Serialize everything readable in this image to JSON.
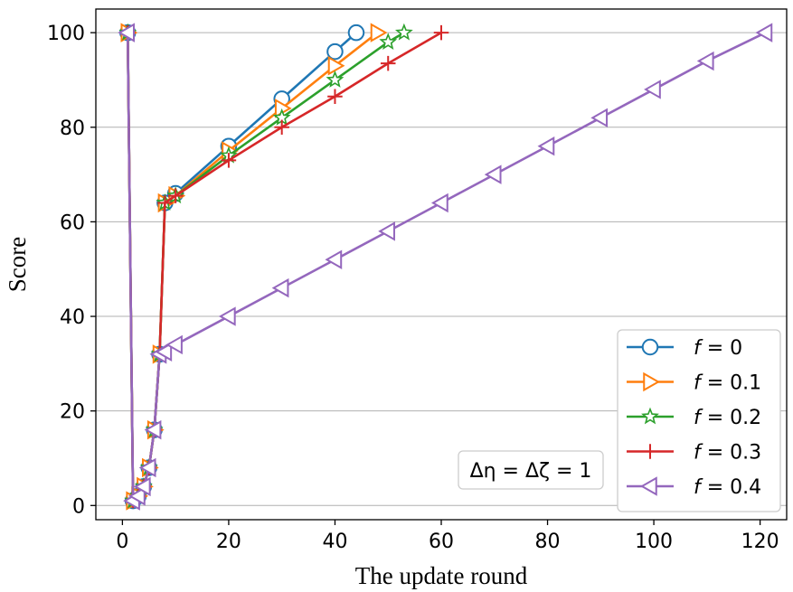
{
  "chart_data": {
    "type": "line",
    "title": "",
    "xlabel": "The update round",
    "ylabel": "Score",
    "xlim": [
      -5,
      125
    ],
    "ylim": [
      -3,
      105
    ],
    "xticks": [
      0,
      20,
      40,
      60,
      80,
      100,
      120
    ],
    "yticks": [
      0,
      20,
      40,
      60,
      80,
      100
    ],
    "grid": "horizontal",
    "legend_position": "bottom-right",
    "annotation": "Δη = Δζ = 1",
    "series": [
      {
        "name": "f = 0",
        "label_var": "f",
        "label_value": "= 0",
        "color": "#1f77b4",
        "marker": "circle",
        "x": [
          1,
          2,
          3,
          4,
          5,
          6,
          7,
          8,
          10,
          20,
          30,
          40,
          44
        ],
        "y": [
          100,
          1,
          2,
          4,
          8,
          16,
          32,
          64,
          66,
          76,
          86,
          96,
          100
        ]
      },
      {
        "name": "f = 0.1",
        "label_var": "f",
        "label_value": "= 0.1",
        "color": "#ff7f0e",
        "marker": "triangle-right",
        "x": [
          1,
          2,
          3,
          4,
          5,
          6,
          7,
          8,
          10,
          20,
          30,
          40,
          48
        ],
        "y": [
          100,
          1,
          2,
          4,
          8,
          16,
          32,
          64,
          65.5,
          75,
          84,
          93,
          100
        ]
      },
      {
        "name": "f = 0.2",
        "label_var": "f",
        "label_value": "= 0.2",
        "color": "#2ca02c",
        "marker": "star",
        "x": [
          1,
          2,
          3,
          4,
          5,
          6,
          7,
          8,
          10,
          20,
          30,
          40,
          50,
          53
        ],
        "y": [
          100,
          1,
          2,
          4,
          8,
          16,
          32,
          64,
          65.5,
          74,
          82,
          90,
          98,
          100
        ]
      },
      {
        "name": "f = 0.3",
        "label_var": "f",
        "label_value": "= 0.3",
        "color": "#d62728",
        "marker": "plus",
        "x": [
          1,
          2,
          3,
          4,
          5,
          6,
          7,
          8,
          10,
          20,
          30,
          40,
          50,
          60
        ],
        "y": [
          100,
          1,
          2,
          4,
          8,
          16,
          32,
          64,
          65.5,
          73,
          80,
          86.5,
          93.5,
          100
        ]
      },
      {
        "name": "f = 0.4",
        "label_var": "f",
        "label_value": "= 0.4",
        "color": "#9467bd",
        "marker": "triangle-left",
        "x": [
          1,
          2,
          3,
          4,
          5,
          6,
          7,
          8,
          10,
          20,
          30,
          40,
          50,
          60,
          70,
          80,
          90,
          100,
          110,
          121
        ],
        "y": [
          100,
          1,
          2,
          4,
          8,
          16,
          32,
          32.5,
          34,
          40,
          46,
          52,
          58,
          64,
          70,
          76,
          82,
          88,
          94,
          100
        ]
      }
    ]
  }
}
